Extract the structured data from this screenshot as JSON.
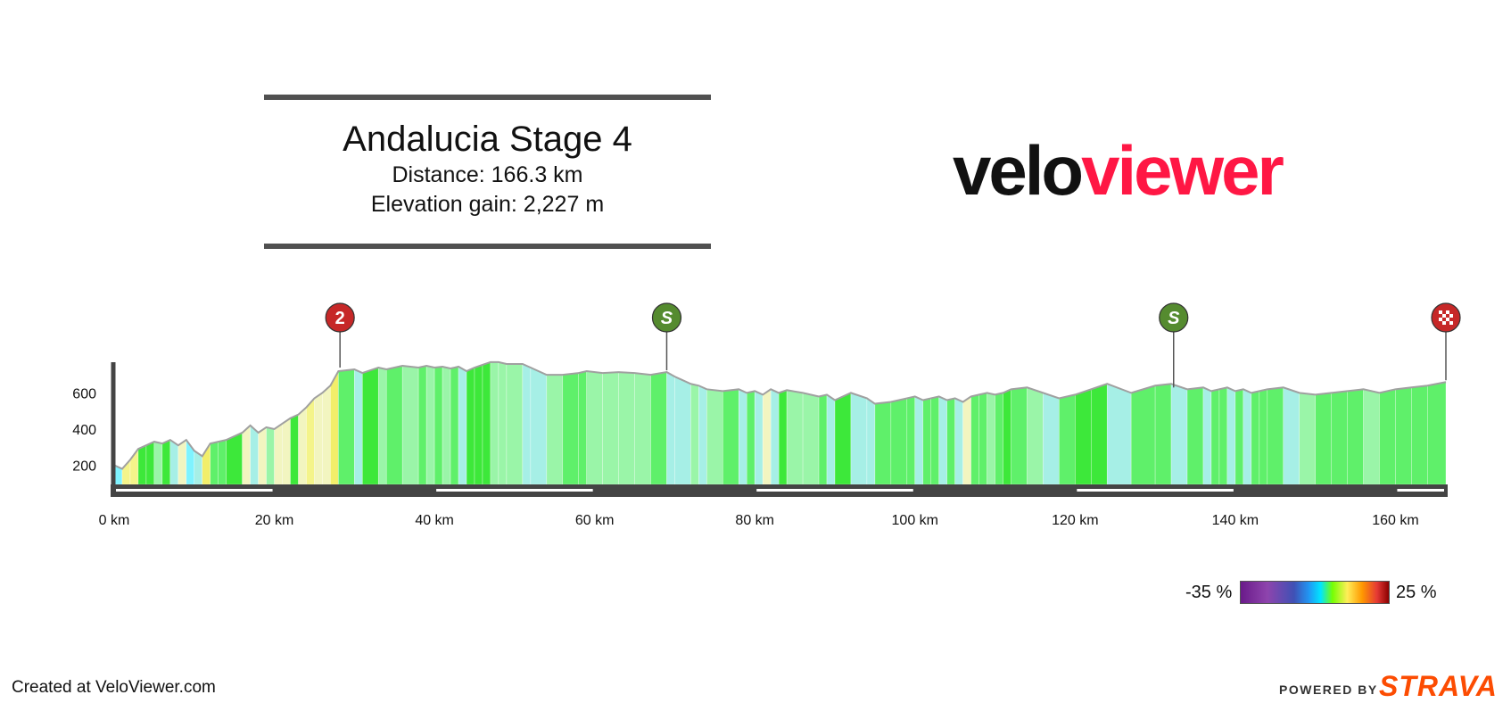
{
  "header": {
    "title": "Andalucia Stage 4",
    "distance": "Distance: 166.3 km",
    "elevation_gain": "Elevation gain: 2,227 m"
  },
  "logo": {
    "part1": "velo",
    "part2": "viewer"
  },
  "legend": {
    "min_label": "-35 %",
    "max_label": "25 %"
  },
  "footer": {
    "created": "Created at VeloViewer.com",
    "powered_by": "POWERED BY",
    "brand": "STRAVA"
  },
  "colors": {
    "axis": "#444444",
    "outline": "#a0a0a0",
    "kom_marker": "#c62828",
    "sprint_marker": "#558b2f",
    "finish_marker": "#c62828"
  },
  "chart_data": {
    "type": "area",
    "title": "Andalucia Stage 4",
    "xlabel": "",
    "ylabel": "",
    "xlim": [
      0,
      166.3
    ],
    "ylim": [
      0,
      740
    ],
    "x_ticks": [
      0,
      20,
      40,
      60,
      80,
      100,
      120,
      140,
      160
    ],
    "x_tick_labels": [
      "0 km",
      "20 km",
      "40 km",
      "60 km",
      "80 km",
      "100 km",
      "120 km",
      "140 km",
      "160 km"
    ],
    "y_ticks": [
      200,
      400,
      600
    ],
    "y_tick_labels": [
      "200",
      "400",
      "600"
    ],
    "grid": false,
    "gradient_scale": {
      "min": -35,
      "max": 25,
      "unit": "%"
    },
    "markers": [
      {
        "type": "kom",
        "label": "2",
        "km": 28.2
      },
      {
        "type": "sprint",
        "label": "S",
        "km": 69.0
      },
      {
        "type": "sprint",
        "label": "S",
        "km": 132.3
      },
      {
        "type": "finish",
        "label": "",
        "km": 166.3
      }
    ],
    "x": [
      0,
      1,
      2,
      3,
      4,
      5,
      6,
      7,
      8,
      9,
      10,
      11,
      12,
      13,
      14,
      16,
      17,
      18,
      19,
      20,
      21,
      22,
      23,
      24,
      25,
      26,
      27,
      28,
      30,
      31,
      33,
      34,
      36,
      38,
      39,
      40,
      41,
      42,
      43,
      44,
      45,
      46,
      47,
      48,
      49,
      51,
      52,
      54,
      56,
      58,
      59,
      61,
      63,
      65,
      67,
      69,
      70,
      72,
      73,
      74,
      76,
      78,
      79,
      80,
      81,
      82,
      83,
      84,
      86,
      88,
      89,
      90,
      92,
      94,
      95,
      97,
      99,
      100,
      101,
      102,
      103,
      104,
      105,
      106,
      107,
      108,
      109,
      110,
      111,
      112,
      114,
      116,
      118,
      120,
      122,
      124,
      127,
      130,
      132,
      134,
      136,
      137,
      138,
      139,
      140,
      141,
      142,
      143,
      144,
      146,
      148,
      150,
      152,
      154,
      156,
      158,
      160,
      162,
      164,
      166.3
    ],
    "elevation": [
      200,
      180,
      230,
      290,
      310,
      330,
      320,
      340,
      310,
      340,
      280,
      250,
      320,
      330,
      340,
      380,
      420,
      380,
      410,
      400,
      430,
      460,
      480,
      520,
      570,
      600,
      640,
      720,
      730,
      710,
      740,
      730,
      750,
      740,
      750,
      740,
      745,
      735,
      745,
      720,
      740,
      755,
      770,
      770,
      760,
      760,
      740,
      700,
      700,
      710,
      720,
      710,
      715,
      710,
      700,
      715,
      690,
      650,
      640,
      620,
      610,
      620,
      600,
      610,
      590,
      620,
      600,
      615,
      600,
      580,
      590,
      560,
      600,
      570,
      540,
      550,
      570,
      580,
      560,
      570,
      580,
      560,
      570,
      550,
      580,
      590,
      600,
      590,
      600,
      620,
      630,
      600,
      570,
      590,
      620,
      650,
      600,
      640,
      650,
      620,
      630,
      610,
      620,
      630,
      610,
      620,
      600,
      610,
      620,
      630,
      600,
      590,
      600,
      610,
      620,
      600,
      620,
      630,
      640,
      660
    ],
    "segment_gradients": [
      -5,
      5,
      6,
      2,
      2,
      -1,
      2,
      -3,
      3,
      -6,
      -3,
      7,
      1,
      1,
      2,
      4,
      -4,
      3,
      -1,
      3,
      3,
      2,
      4,
      5,
      3,
      4,
      8,
      1,
      -2,
      2,
      -1,
      1,
      -1,
      1,
      -1,
      1,
      -1,
      1,
      -3,
      2,
      2,
      2,
      0,
      -1,
      0,
      -2,
      -2,
      0,
      1,
      1,
      -1,
      0,
      0,
      -1,
      1,
      -2,
      -2,
      -1,
      -2,
      -1,
      1,
      -2,
      1,
      -2,
      3,
      -2,
      2,
      -1,
      -1,
      1,
      -3,
      2,
      -2,
      -3,
      1,
      1,
      1,
      -2,
      1,
      1,
      -2,
      1,
      -2,
      3,
      1,
      1,
      -1,
      1,
      2,
      1,
      -1,
      -2,
      1,
      2,
      2,
      -2,
      1,
      1,
      -2,
      1,
      -2,
      1,
      1,
      -2,
      1,
      -2,
      1,
      1,
      1,
      -2,
      -1,
      1,
      1,
      1,
      -1,
      1,
      1,
      1,
      1
    ]
  }
}
